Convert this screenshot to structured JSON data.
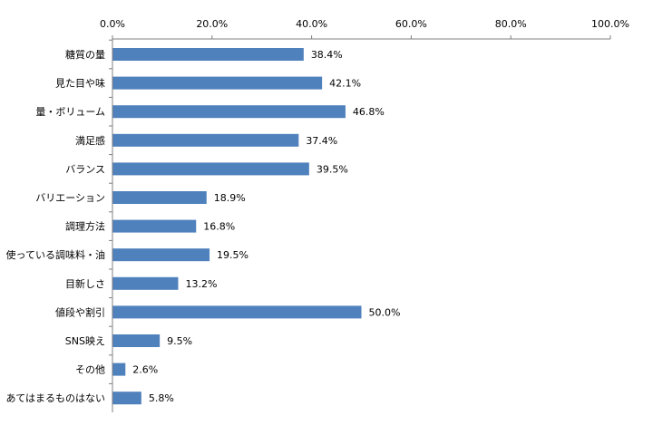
{
  "chart_data": {
    "type": "bar",
    "orientation": "horizontal",
    "title": "",
    "xlabel": "",
    "ylabel": "",
    "xlim": [
      0,
      100
    ],
    "x_ticks": [
      "0.0%",
      "20.0%",
      "40.0%",
      "60.0%",
      "80.0%",
      "100.0%"
    ],
    "x_tick_values": [
      0,
      20,
      40,
      60,
      80,
      100
    ],
    "x_axis_position": "top",
    "grid": false,
    "legend": "none",
    "bar_color": "#4F81BD",
    "categories": [
      "糖質の量",
      "見た目や味",
      "量・ボリューム",
      "満足感",
      "バランス",
      "バリエーション",
      "調理方法",
      "使っている調味料・油",
      "目新しさ",
      "値段や割引",
      "SNS映え",
      "その他",
      "あてはまるものはない"
    ],
    "values": [
      38.4,
      42.1,
      46.8,
      37.4,
      39.5,
      18.9,
      16.8,
      19.5,
      13.2,
      50.0,
      9.5,
      2.6,
      5.8
    ],
    "data_labels": [
      "38.4%",
      "42.1%",
      "46.8%",
      "37.4%",
      "39.5%",
      "18.9%",
      "16.8%",
      "19.5%",
      "13.2%",
      "50.0%",
      "9.5%",
      "2.6%",
      "5.8%"
    ]
  }
}
